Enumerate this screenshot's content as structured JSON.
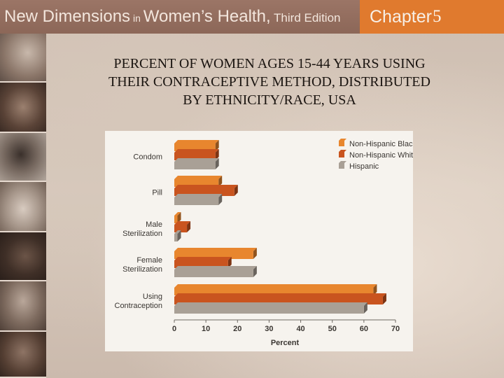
{
  "header": {
    "title_part1": "New Dimensions",
    "title_part2": " in ",
    "title_part3": "Women’s Health,",
    "title_part4": " Third Edition",
    "chapter_label": "Chapter",
    "chapter_number": "5"
  },
  "slide_title_lines": [
    "PERCENT OF WOMEN AGES 15-44 YEARS USING",
    "THEIR CONTRACEPTIVE METHOD, DISTRIBUTED",
    "BY ETHNICITY/RACE, USA"
  ],
  "colors": {
    "header_bg": "#8c6758",
    "chapter_bg": "#e07a2e",
    "Non-Hispanic Black": "#e8862e",
    "Non-Hispanic White": "#c9541f",
    "Hispanic": "#a9a096"
  },
  "chart_data": {
    "type": "bar",
    "orientation": "horizontal",
    "categories": [
      "Condom",
      "Pill",
      "Male\nSterilization",
      "Female\nSterilization",
      "Using\nContraception"
    ],
    "series": [
      {
        "name": "Non-Hispanic Black",
        "values": [
          13,
          14,
          1,
          25,
          63
        ]
      },
      {
        "name": "Non-Hispanic White",
        "values": [
          13,
          19,
          4,
          17,
          66
        ]
      },
      {
        "name": "Hispanic",
        "values": [
          13,
          14,
          1,
          25,
          60
        ]
      }
    ],
    "xlabel": "Percent",
    "ylabel": "",
    "xlim": [
      0,
      70
    ],
    "xticks": [
      0,
      10,
      20,
      30,
      40,
      50,
      60,
      70
    ],
    "grid": false,
    "legend": "top-right"
  }
}
